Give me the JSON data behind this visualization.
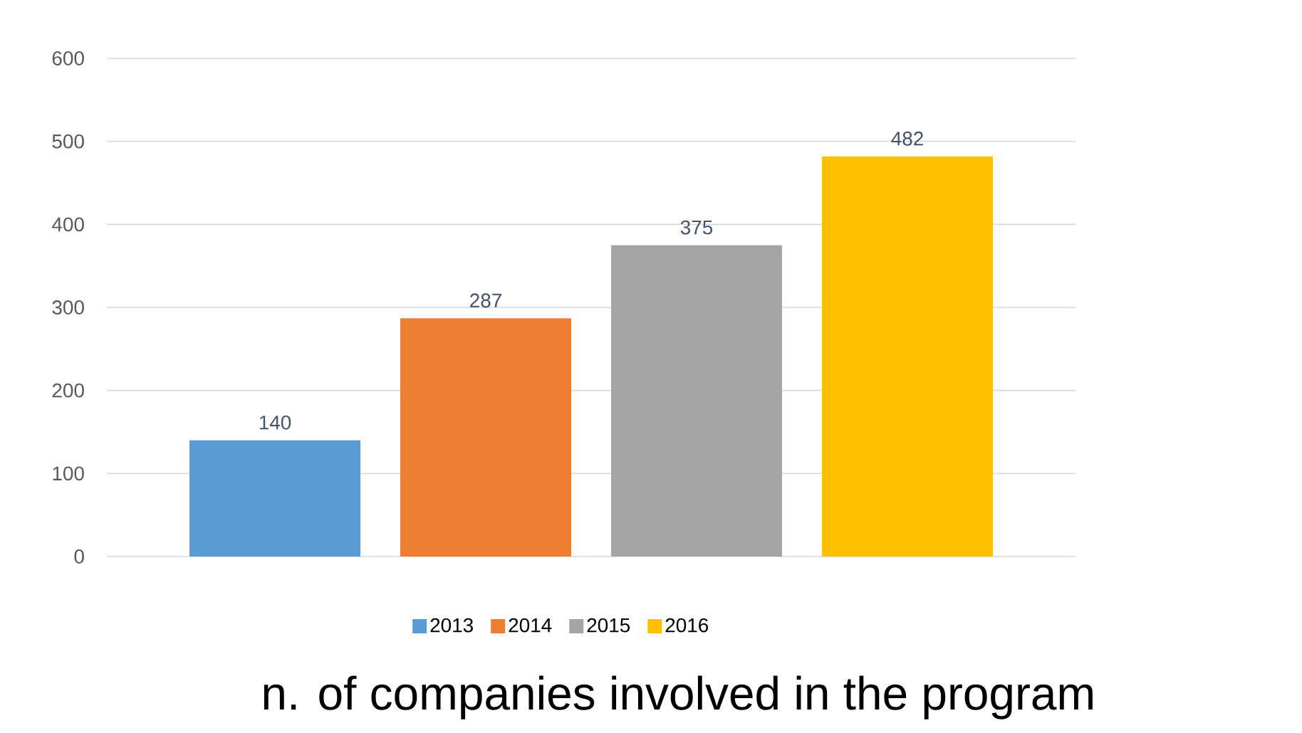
{
  "chart_data": {
    "type": "bar",
    "xlabel": "n. of companies involved in the program",
    "categories": [
      null
    ],
    "series": [
      {
        "name": "2013",
        "color": "#5b9bd5",
        "values": [
          140
        ]
      },
      {
        "name": "2014",
        "color": "#ed7d31",
        "values": [
          287
        ]
      },
      {
        "name": "2015",
        "color": "#a5a5a5",
        "values": [
          375
        ]
      },
      {
        "name": "2016",
        "color": "#ffc000",
        "values": [
          482
        ]
      }
    ],
    "ylim": [
      0,
      600
    ],
    "yticks": [
      0,
      100,
      200,
      300,
      400,
      500,
      600
    ],
    "grid": "y",
    "legend": "bottom",
    "data_labels": true
  }
}
